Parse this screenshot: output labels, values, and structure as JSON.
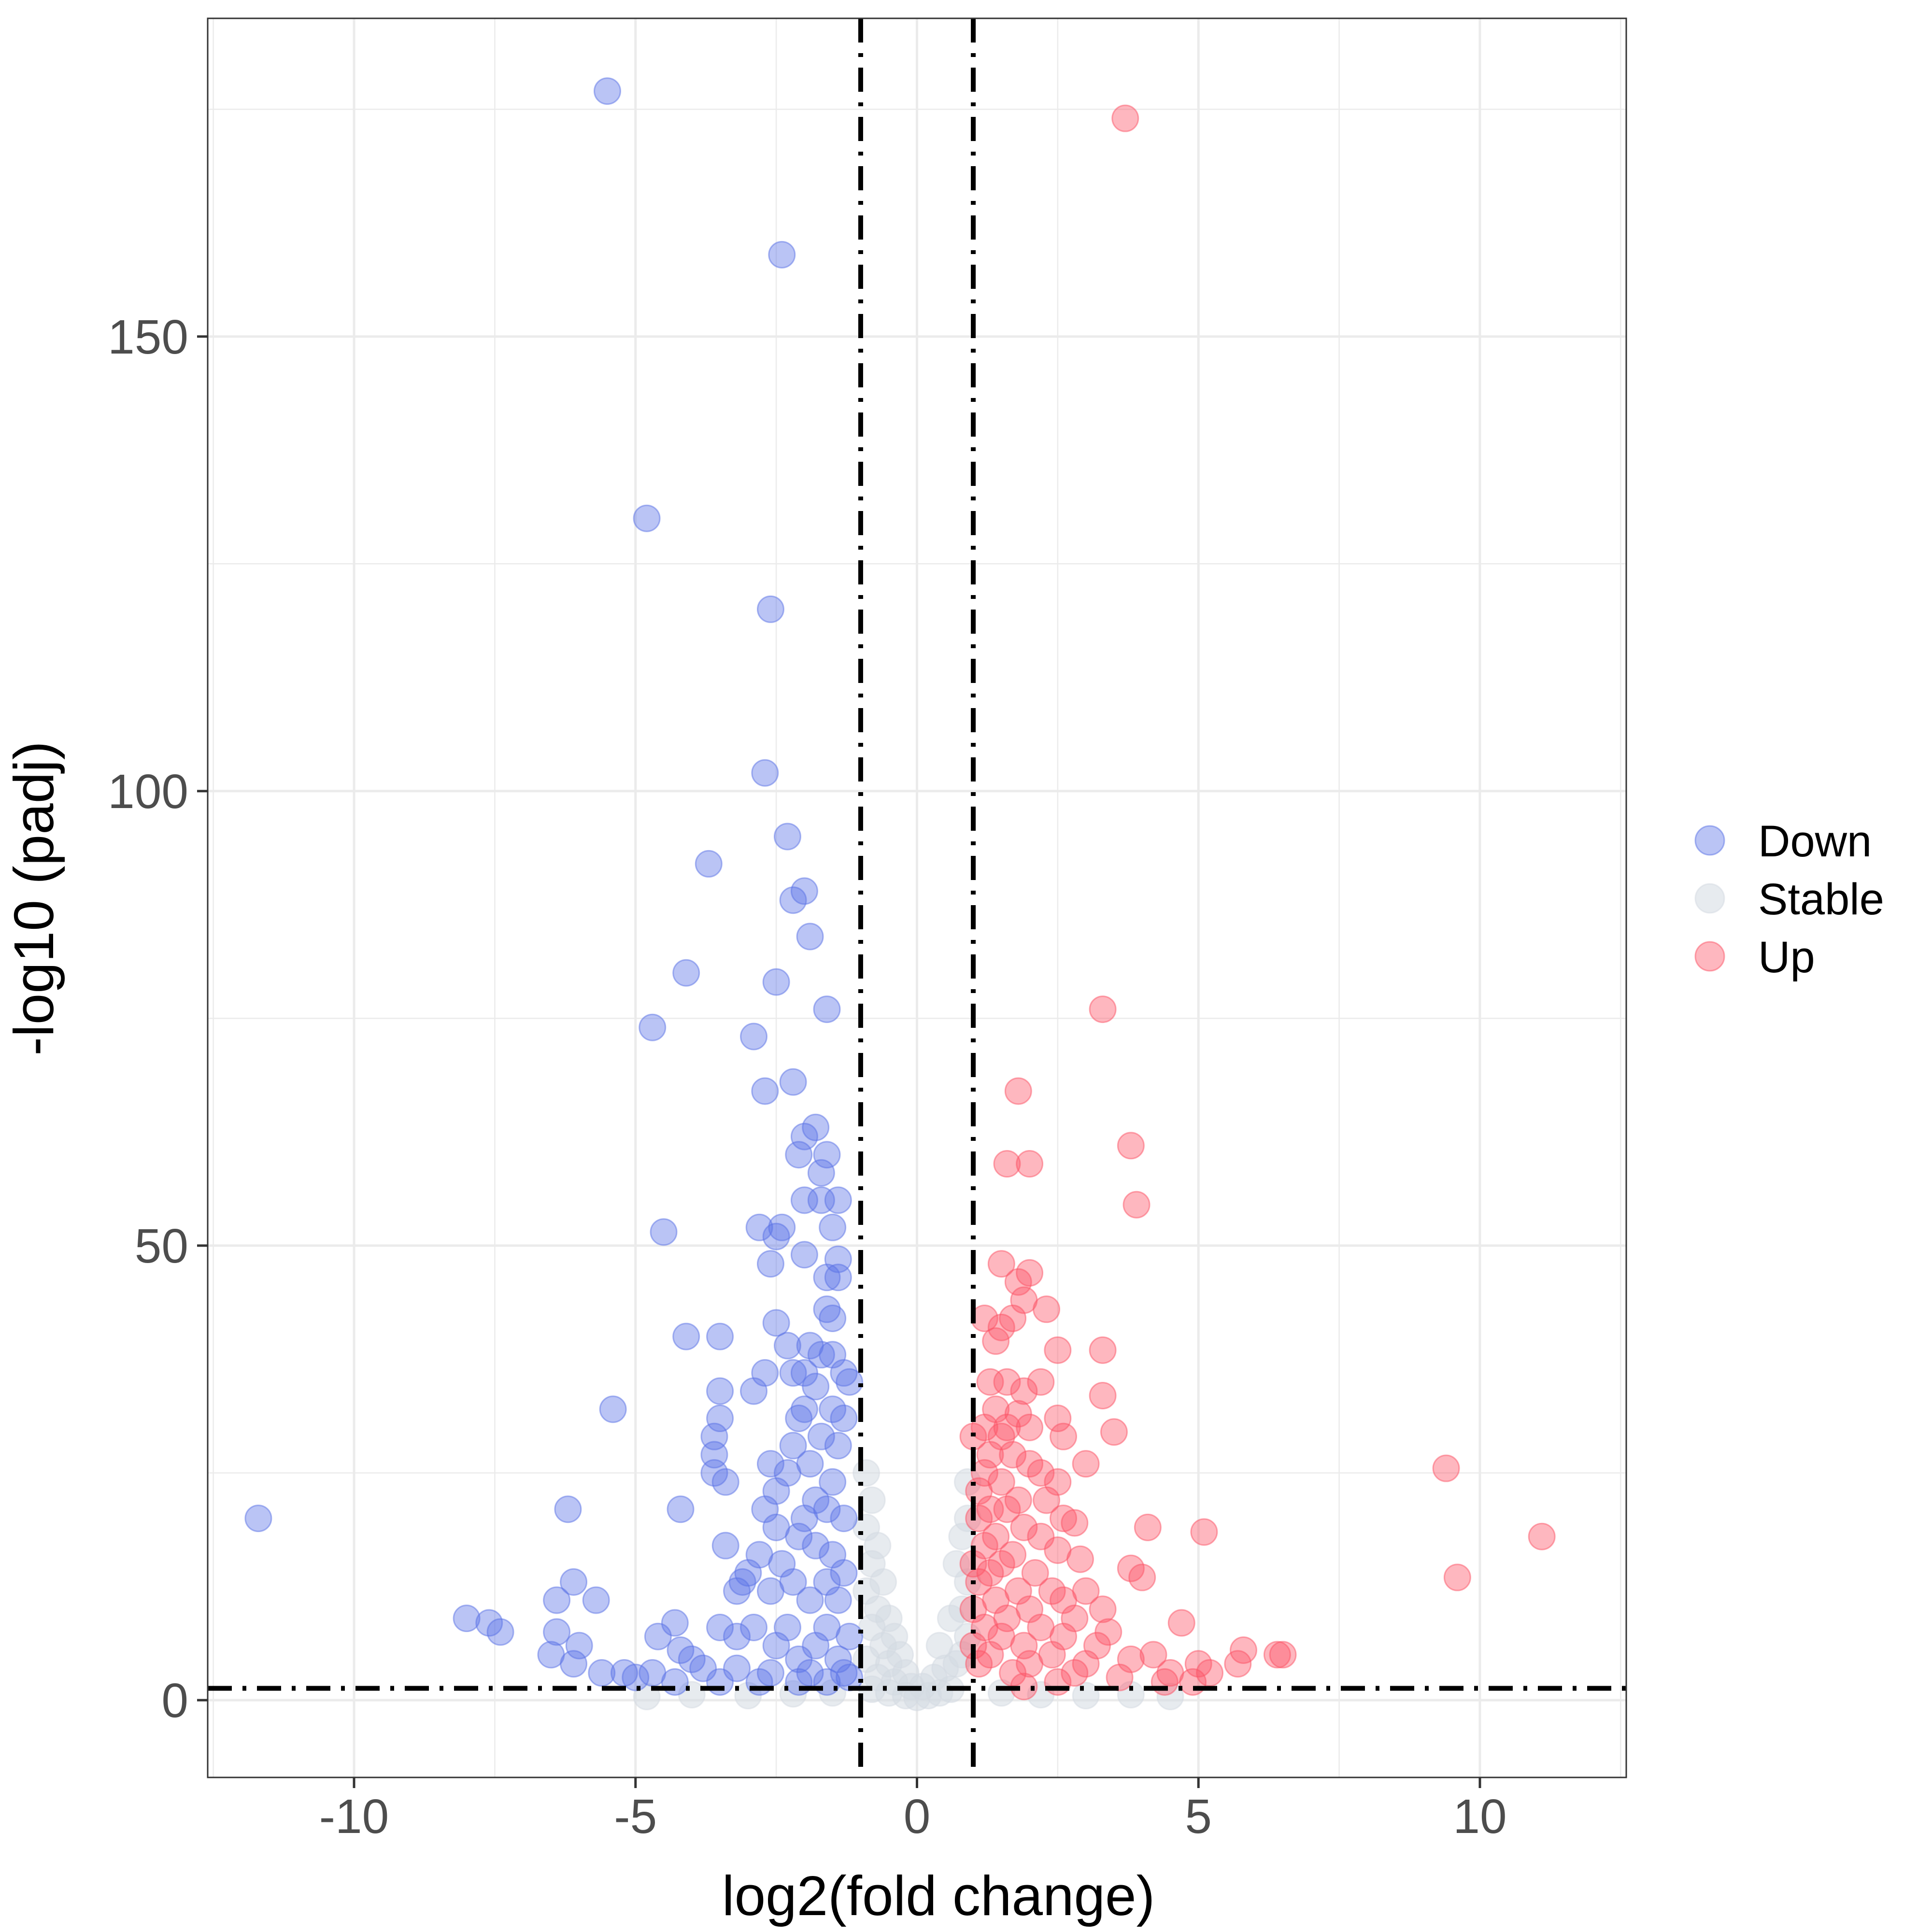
{
  "chart_data": {
    "type": "scatter",
    "title": "",
    "xlabel": "log2(fold change)",
    "ylabel": "-log10 (padj)",
    "xlim": [
      -12.6,
      12.6
    ],
    "ylim": [
      -8.5,
      185
    ],
    "x_ticks": [
      {
        "value": -10,
        "label": "-10"
      },
      {
        "value": -5,
        "label": "-5"
      },
      {
        "value": 0,
        "label": "0"
      },
      {
        "value": 5,
        "label": "5"
      },
      {
        "value": 10,
        "label": "10"
      }
    ],
    "y_ticks": [
      {
        "value": 0,
        "label": "0"
      },
      {
        "value": 50,
        "label": "50"
      },
      {
        "value": 100,
        "label": "100"
      },
      {
        "value": 150,
        "label": "150"
      }
    ],
    "grid": true,
    "legend_position": "right",
    "thresholds": {
      "fold_change": [
        -1,
        1
      ],
      "padj": 1.3
    },
    "series": [
      {
        "name": "Down",
        "color": "#5a72e6",
        "points": [
          [
            -5.5,
            177
          ],
          [
            -4.8,
            130
          ],
          [
            -2.4,
            159
          ],
          [
            -2.6,
            120
          ],
          [
            -2.7,
            102
          ],
          [
            -2.3,
            95
          ],
          [
            -3.7,
            92
          ],
          [
            -2.0,
            89
          ],
          [
            -2.2,
            88
          ],
          [
            -1.9,
            84
          ],
          [
            -4.1,
            80
          ],
          [
            -2.5,
            79
          ],
          [
            -1.6,
            76
          ],
          [
            -4.7,
            74
          ],
          [
            -2.9,
            73
          ],
          [
            -2.2,
            68
          ],
          [
            -2.7,
            67
          ],
          [
            -1.8,
            63
          ],
          [
            -2.0,
            62
          ],
          [
            -2.1,
            60
          ],
          [
            -1.6,
            60
          ],
          [
            -1.7,
            58
          ],
          [
            -2.0,
            55
          ],
          [
            -1.7,
            55
          ],
          [
            -1.4,
            55
          ],
          [
            -1.5,
            52
          ],
          [
            -2.4,
            52
          ],
          [
            -2.8,
            52
          ],
          [
            -4.5,
            51.5
          ],
          [
            -2.5,
            51
          ],
          [
            -2.0,
            49
          ],
          [
            -1.4,
            48.5
          ],
          [
            -2.6,
            48
          ],
          [
            -1.6,
            46.5
          ],
          [
            -1.4,
            46.5
          ],
          [
            -1.6,
            43
          ],
          [
            -1.5,
            42
          ],
          [
            -2.5,
            41.5
          ],
          [
            -4.1,
            40
          ],
          [
            -3.5,
            40
          ],
          [
            -2.3,
            39
          ],
          [
            -1.9,
            39
          ],
          [
            -1.7,
            38
          ],
          [
            -1.5,
            38
          ],
          [
            -2.7,
            36
          ],
          [
            -2.2,
            36
          ],
          [
            -2.0,
            36
          ],
          [
            -1.3,
            36
          ],
          [
            -3.5,
            34
          ],
          [
            -2.9,
            34
          ],
          [
            -1.8,
            34.5
          ],
          [
            -1.2,
            35
          ],
          [
            -2.0,
            32
          ],
          [
            -1.5,
            32
          ],
          [
            -3.5,
            31
          ],
          [
            -2.1,
            31
          ],
          [
            -3.6,
            29
          ],
          [
            -1.3,
            31
          ],
          [
            -1.7,
            29
          ],
          [
            -2.2,
            28
          ],
          [
            -1.4,
            28
          ],
          [
            -3.6,
            27
          ],
          [
            -2.6,
            26
          ],
          [
            -1.9,
            26
          ],
          [
            -3.6,
            25
          ],
          [
            -2.3,
            25
          ],
          [
            -1.5,
            24
          ],
          [
            -3.4,
            24
          ],
          [
            -2.5,
            23
          ],
          [
            -1.8,
            22
          ],
          [
            -2.7,
            21
          ],
          [
            -2.0,
            20
          ],
          [
            -4.2,
            21
          ],
          [
            -1.6,
            21
          ],
          [
            -2.5,
            19
          ],
          [
            -1.3,
            20
          ],
          [
            -2.1,
            18
          ],
          [
            -3.4,
            17
          ],
          [
            -2.8,
            16
          ],
          [
            -1.8,
            17
          ],
          [
            -1.5,
            16
          ],
          [
            -2.4,
            15
          ],
          [
            -3.0,
            14
          ],
          [
            -3.1,
            13
          ],
          [
            -2.2,
            13
          ],
          [
            -1.6,
            13
          ],
          [
            -1.3,
            14
          ],
          [
            -3.2,
            12
          ],
          [
            -2.6,
            12
          ],
          [
            -1.9,
            11
          ],
          [
            -1.4,
            11
          ],
          [
            -6.1,
            13
          ],
          [
            -6.4,
            11
          ],
          [
            -5.7,
            11
          ],
          [
            -8.0,
            9
          ],
          [
            -7.6,
            8.5
          ],
          [
            -7.4,
            7.5
          ],
          [
            -6.4,
            7.5
          ],
          [
            -4.3,
            8.5
          ],
          [
            -3.5,
            8
          ],
          [
            -4.6,
            7
          ],
          [
            -2.9,
            8
          ],
          [
            -2.3,
            8
          ],
          [
            -1.6,
            8
          ],
          [
            -3.2,
            7
          ],
          [
            -1.2,
            7
          ],
          [
            -6.0,
            6
          ],
          [
            -4.2,
            5.5
          ],
          [
            -2.5,
            6
          ],
          [
            -1.8,
            6
          ],
          [
            -6.5,
            5
          ],
          [
            -4.0,
            4.5
          ],
          [
            -2.1,
            4.5
          ],
          [
            -1.4,
            4.5
          ],
          [
            -6.1,
            4
          ],
          [
            -5.6,
            3
          ],
          [
            -5.2,
            3
          ],
          [
            -4.7,
            3
          ],
          [
            -3.8,
            3.5
          ],
          [
            -3.2,
            3.5
          ],
          [
            -2.6,
            3
          ],
          [
            -1.9,
            3
          ],
          [
            -1.3,
            3
          ],
          [
            -5.0,
            2.5
          ],
          [
            -4.3,
            2
          ],
          [
            -3.5,
            2
          ],
          [
            -2.8,
            2
          ],
          [
            -2.1,
            2
          ],
          [
            -1.6,
            2
          ],
          [
            -1.2,
            2.5
          ],
          [
            -6.2,
            21
          ],
          [
            -11.7,
            20
          ],
          [
            -5.4,
            32
          ]
        ]
      },
      {
        "name": "Stable",
        "color": "#d3dae2",
        "points": [
          [
            -0.9,
            25
          ],
          [
            -0.8,
            22
          ],
          [
            -0.9,
            19
          ],
          [
            -0.7,
            17
          ],
          [
            -0.8,
            15
          ],
          [
            -0.6,
            13
          ],
          [
            -0.9,
            12
          ],
          [
            -0.7,
            10
          ],
          [
            -0.5,
            9
          ],
          [
            -0.8,
            8
          ],
          [
            -0.4,
            7
          ],
          [
            -0.6,
            6
          ],
          [
            -0.3,
            5
          ],
          [
            -0.9,
            4.5
          ],
          [
            -0.5,
            4
          ],
          [
            -0.2,
            3
          ],
          [
            -0.7,
            2.5
          ],
          [
            -0.4,
            2
          ],
          [
            -0.1,
            1.5
          ],
          [
            -0.8,
            1.2
          ],
          [
            -0.5,
            0.8
          ],
          [
            -0.2,
            0.5
          ],
          [
            0.0,
            0.3
          ],
          [
            0.2,
            0.5
          ],
          [
            0.4,
            0.8
          ],
          [
            0.6,
            1.2
          ],
          [
            0.1,
            1.5
          ],
          [
            0.3,
            2.5
          ],
          [
            0.5,
            3.5
          ],
          [
            0.7,
            4
          ],
          [
            0.8,
            5
          ],
          [
            0.4,
            6
          ],
          [
            0.9,
            7
          ],
          [
            0.6,
            9
          ],
          [
            0.8,
            10
          ],
          [
            0.9,
            13
          ],
          [
            0.7,
            15
          ],
          [
            0.8,
            18
          ],
          [
            0.9,
            20
          ],
          [
            0.9,
            24
          ],
          [
            -1.5,
            0.8
          ],
          [
            -2.2,
            0.7
          ],
          [
            -3.0,
            0.5
          ],
          [
            -4.0,
            0.6
          ],
          [
            -4.8,
            0.4
          ],
          [
            1.5,
            0.8
          ],
          [
            2.2,
            0.6
          ],
          [
            3.0,
            0.5
          ],
          [
            3.8,
            0.6
          ],
          [
            4.5,
            0.4
          ]
        ]
      },
      {
        "name": "Up",
        "color": "#fc5466",
        "points": [
          [
            3.7,
            174
          ],
          [
            3.3,
            76
          ],
          [
            1.8,
            67
          ],
          [
            3.8,
            61
          ],
          [
            2.0,
            59
          ],
          [
            1.6,
            59
          ],
          [
            3.9,
            54.5
          ],
          [
            1.5,
            48
          ],
          [
            2.0,
            47
          ],
          [
            1.8,
            46
          ],
          [
            1.9,
            44
          ],
          [
            2.3,
            43
          ],
          [
            1.2,
            42
          ],
          [
            1.5,
            41
          ],
          [
            1.7,
            42
          ],
          [
            1.4,
            39.5
          ],
          [
            2.5,
            38.5
          ],
          [
            3.3,
            38.5
          ],
          [
            1.3,
            35
          ],
          [
            1.6,
            35
          ],
          [
            2.2,
            35
          ],
          [
            1.9,
            34
          ],
          [
            3.3,
            33.5
          ],
          [
            1.4,
            32
          ],
          [
            1.8,
            31.5
          ],
          [
            2.5,
            31
          ],
          [
            1.2,
            30
          ],
          [
            1.6,
            30
          ],
          [
            2.0,
            30
          ],
          [
            3.5,
            29.5
          ],
          [
            1.0,
            29
          ],
          [
            1.5,
            29
          ],
          [
            2.6,
            29
          ],
          [
            1.3,
            27
          ],
          [
            1.7,
            27
          ],
          [
            2.0,
            26
          ],
          [
            3.0,
            26
          ],
          [
            1.2,
            25
          ],
          [
            2.2,
            25
          ],
          [
            1.5,
            24
          ],
          [
            2.5,
            24
          ],
          [
            1.1,
            23
          ],
          [
            1.8,
            22
          ],
          [
            2.3,
            22
          ],
          [
            1.3,
            21
          ],
          [
            1.6,
            21
          ],
          [
            2.6,
            20
          ],
          [
            1.1,
            20
          ],
          [
            1.9,
            19
          ],
          [
            2.8,
            19.5
          ],
          [
            4.1,
            19
          ],
          [
            5.1,
            18.5
          ],
          [
            1.4,
            18
          ],
          [
            2.2,
            18
          ],
          [
            1.2,
            17
          ],
          [
            1.7,
            16
          ],
          [
            2.5,
            16.5
          ],
          [
            1.0,
            15
          ],
          [
            1.5,
            15
          ],
          [
            2.9,
            15.5
          ],
          [
            3.8,
            14.5
          ],
          [
            1.3,
            14
          ],
          [
            2.1,
            14
          ],
          [
            4.0,
            13.5
          ],
          [
            1.1,
            13
          ],
          [
            1.8,
            12
          ],
          [
            2.4,
            12
          ],
          [
            3.0,
            12
          ],
          [
            1.4,
            11
          ],
          [
            2.6,
            11
          ],
          [
            1.0,
            10
          ],
          [
            2.0,
            10
          ],
          [
            3.3,
            10
          ],
          [
            1.6,
            9
          ],
          [
            2.8,
            9
          ],
          [
            4.7,
            8.5
          ],
          [
            1.2,
            8
          ],
          [
            2.2,
            8
          ],
          [
            3.4,
            7.5
          ],
          [
            1.5,
            7
          ],
          [
            2.6,
            7
          ],
          [
            1.0,
            6
          ],
          [
            1.9,
            6
          ],
          [
            3.2,
            6
          ],
          [
            5.8,
            5.5
          ],
          [
            6.4,
            5
          ],
          [
            6.5,
            5
          ],
          [
            1.3,
            5
          ],
          [
            2.4,
            5
          ],
          [
            4.2,
            5
          ],
          [
            3.8,
            4.5
          ],
          [
            5.0,
            4
          ],
          [
            5.7,
            4
          ],
          [
            1.1,
            4
          ],
          [
            2.0,
            4
          ],
          [
            3.0,
            4
          ],
          [
            4.5,
            3
          ],
          [
            5.2,
            3
          ],
          [
            1.7,
            3
          ],
          [
            2.8,
            3
          ],
          [
            3.6,
            2.5
          ],
          [
            4.4,
            2
          ],
          [
            4.9,
            2
          ],
          [
            2.5,
            2
          ],
          [
            1.9,
            1.5
          ],
          [
            9.4,
            25.5
          ],
          [
            9.6,
            13.5
          ],
          [
            11.1,
            18
          ]
        ]
      }
    ]
  }
}
